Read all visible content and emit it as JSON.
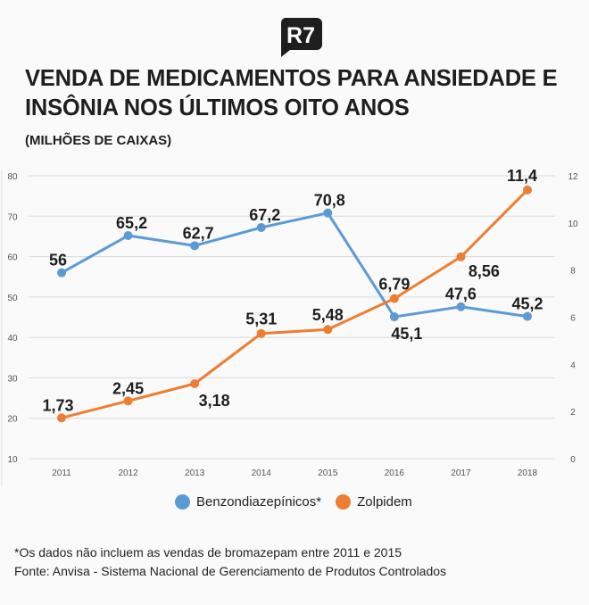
{
  "logo": "R7",
  "title": "VENDA DE MEDICAMENTOS PARA ANSIEDADE E INSÔNIA NOS ÚLTIMOS OITO ANOS",
  "subtitle": "(MILHÕES DE CAIXAS)",
  "chart_data": {
    "type": "line",
    "title": "VENDA DE MEDICAMENTOS PARA ANSIEDADE E INSÔNIA NOS ÚLTIMOS OITO ANOS",
    "subtitle": "(MILHÕES DE CAIXAS)",
    "categories": [
      "2011",
      "2012",
      "2013",
      "2014",
      "2015",
      "2016",
      "2017",
      "2018"
    ],
    "y_left": {
      "range": [
        10,
        80
      ],
      "ticks": [
        10,
        20,
        30,
        40,
        50,
        60,
        70,
        80
      ]
    },
    "y_right": {
      "range": [
        0,
        12
      ],
      "ticks": [
        0,
        2,
        4,
        6,
        8,
        10,
        12
      ]
    },
    "grid": true,
    "legend_placement": "bottom",
    "series": [
      {
        "name": "Benzondiazepínicos*",
        "axis": "left",
        "color": "#5b9bd5",
        "values": [
          56,
          65.2,
          62.7,
          67.2,
          70.8,
          45.1,
          47.6,
          45.2
        ],
        "labels": [
          "56",
          "65,2",
          "62,7",
          "67,2",
          "70,8",
          "45,1",
          "47,6",
          "45,2"
        ]
      },
      {
        "name": "Zolpidem",
        "axis": "right",
        "color": "#ed7d31",
        "values": [
          1.73,
          2.45,
          3.18,
          5.31,
          5.48,
          6.79,
          8.56,
          11.4
        ],
        "labels": [
          "1,73",
          "2,45",
          "3,18",
          "5,31",
          "5,48",
          "6,79",
          "8,56",
          "11,4"
        ]
      }
    ]
  },
  "footnotes": [
    "*Os dados não incluem as vendas de bromazepam entre 2011 e 2015",
    "Fonte: Anvisa - Sistema Nacional de Gerenciamento de Produtos Controlados"
  ]
}
